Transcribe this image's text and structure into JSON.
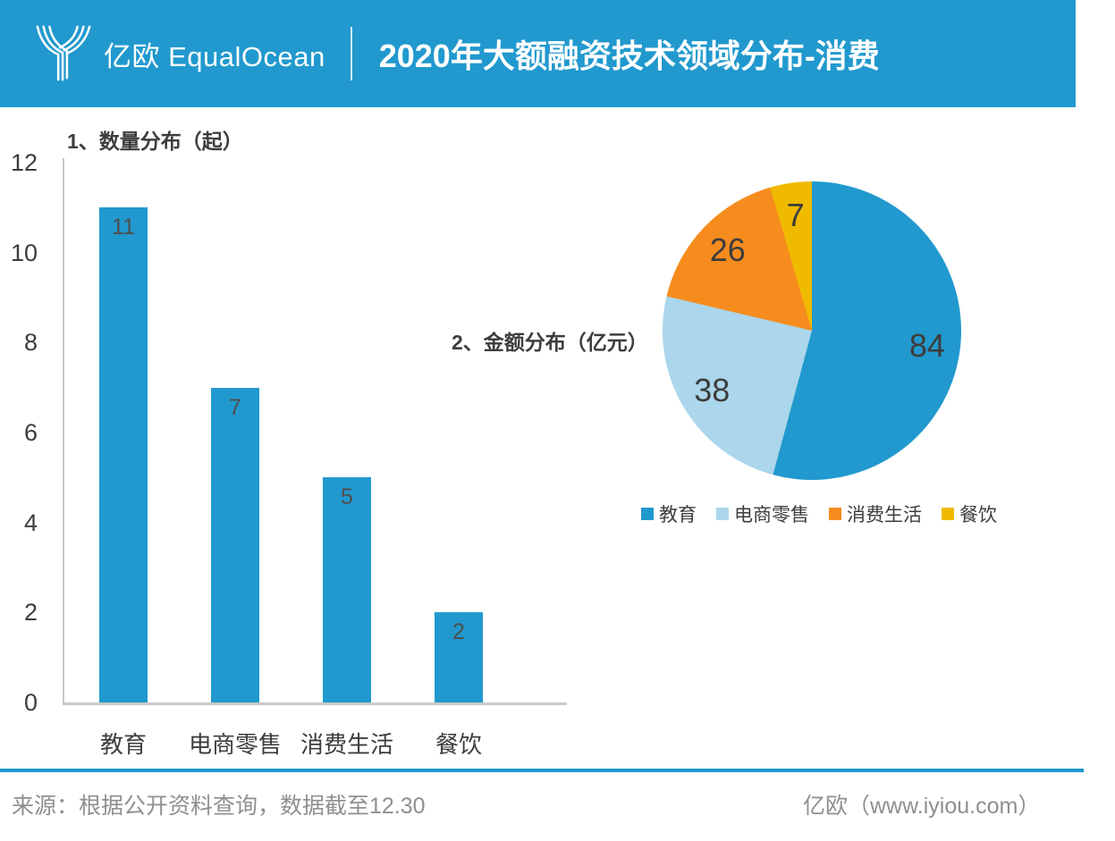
{
  "header": {
    "logo_text": "亿欧 EqualOcean",
    "title": "2020年大额融资技术领域分布-消费"
  },
  "chart_data": [
    {
      "type": "bar",
      "title": "1、数量分布（起）",
      "categories": [
        "教育",
        "电商零售",
        "消费生活",
        "餐饮"
      ],
      "values": [
        11,
        7,
        5,
        2
      ],
      "ylim": [
        0,
        12
      ],
      "yticks": [
        12,
        10,
        8,
        6,
        4,
        2,
        0
      ],
      "bar_color": "#2199CE",
      "grid": false,
      "xlabel": "",
      "ylabel": ""
    },
    {
      "type": "pie",
      "title": "2、金额分布（亿元）",
      "categories": [
        "教育",
        "电商零售",
        "消费生活",
        "餐饮"
      ],
      "values": [
        84,
        38,
        26,
        7
      ],
      "colors": [
        "#2199CE",
        "#ABD6EB",
        "#F68C1E",
        "#F0BA00"
      ],
      "start_angle_deg": 0,
      "direction": "clockwise",
      "legend_position": "bottom"
    }
  ],
  "footer": {
    "source_text": "来源：根据公开资料查询，数据截至12.30",
    "site_text": "亿欧（www.iyiou.com）"
  },
  "colors": {
    "brand_blue": "#2199CE",
    "light_blue": "#ABD6EB",
    "orange": "#F68C1E",
    "yellow": "#F0BA00",
    "axis_gray": "#c9c9c9",
    "text_dark": "#3d3d3d",
    "text_muted": "#8f8f8f"
  }
}
